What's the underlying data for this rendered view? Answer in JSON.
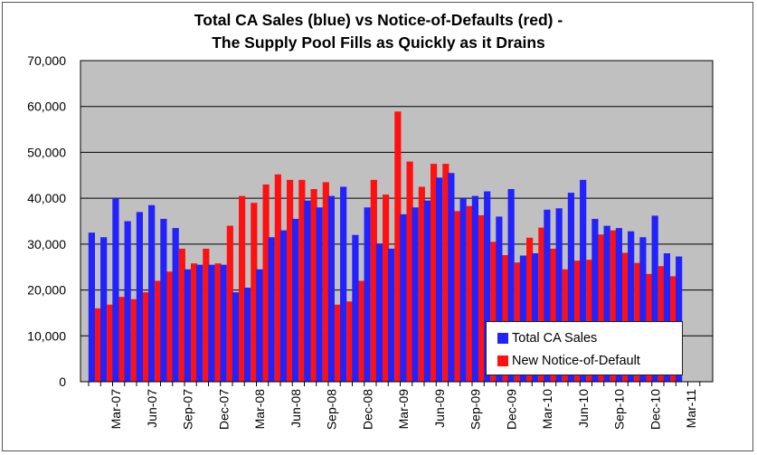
{
  "title_line1": "Total CA Sales (blue) vs Notice-of-Defaults (red) -",
  "title_line2": "The Supply Pool Fills as Quickly as it Drains",
  "colors": {
    "sales": "#2222ff",
    "nod": "#ff1111",
    "plot_bg": "#c0c0c0",
    "grid": "#000000"
  },
  "chart_data": {
    "type": "bar",
    "title": "Total CA Sales (blue) vs Notice-of-Defaults (red) - The Supply Pool Fills as Quickly as it Drains",
    "xlabel": "",
    "ylabel": "",
    "ylim": [
      0,
      70000
    ],
    "yticks": [
      "0",
      "10,000",
      "20,000",
      "30,000",
      "40,000",
      "50,000",
      "60,000",
      "70,000"
    ],
    "grid": true,
    "legend_position": "bottom-right",
    "xtick_labels": [
      "Mar-07",
      "Jun-07",
      "Sep-07",
      "Dec-07",
      "Mar-08",
      "Jun-08",
      "Sep-08",
      "Dec-08",
      "Mar-09",
      "Jun-09",
      "Sep-09",
      "Dec-09",
      "Mar-10",
      "Jun-10",
      "Sep-10",
      "Dec-10",
      "Mar-11"
    ],
    "categories": [
      "Jan-07",
      "Feb-07",
      "Mar-07",
      "Apr-07",
      "May-07",
      "Jun-07",
      "Jul-07",
      "Aug-07",
      "Sep-07",
      "Oct-07",
      "Nov-07",
      "Dec-07",
      "Jan-08",
      "Feb-08",
      "Mar-08",
      "Apr-08",
      "May-08",
      "Jun-08",
      "Jul-08",
      "Aug-08",
      "Sep-08",
      "Oct-08",
      "Nov-08",
      "Dec-08",
      "Jan-09",
      "Feb-09",
      "Mar-09",
      "Apr-09",
      "May-09",
      "Jun-09",
      "Jul-09",
      "Aug-09",
      "Sep-09",
      "Oct-09",
      "Nov-09",
      "Dec-09",
      "Jan-10",
      "Feb-10",
      "Mar-10",
      "Apr-10",
      "May-10",
      "Jun-10",
      "Jul-10",
      "Aug-10",
      "Sep-10",
      "Oct-10",
      "Nov-10",
      "Dec-10",
      "Jan-11",
      "Feb-11"
    ],
    "series": [
      {
        "name": "Total CA Sales",
        "color": "#2222ff",
        "values": [
          32500,
          31500,
          40000,
          35000,
          37000,
          38500,
          35500,
          33500,
          24500,
          25500,
          25500,
          25500,
          19500,
          20500,
          24500,
          31500,
          33000,
          35500,
          39500,
          38000,
          40500,
          42500,
          32000,
          38000,
          30000,
          29000,
          36500,
          38000,
          39500,
          44500,
          45500,
          40000,
          40500,
          41500,
          36000,
          42000,
          27500,
          28000,
          37500,
          37800,
          41200,
          44000,
          35500,
          34000,
          33500,
          32800,
          31500,
          36200,
          28000,
          27300
        ]
      },
      {
        "name": "New Notice-of-Default",
        "color": "#ff1111",
        "values": [
          16000,
          16800,
          18500,
          18000,
          19500,
          22000,
          24000,
          29000,
          25800,
          29000,
          25800,
          34000,
          40500,
          39000,
          43000,
          45200,
          44000,
          44000,
          42000,
          43500,
          16800,
          17500,
          22000,
          44000,
          40800,
          58900,
          48000,
          42500,
          47500,
          47500,
          37200,
          38300,
          36300,
          30500,
          27600,
          26000,
          31400,
          33600,
          29000,
          24500,
          26400,
          26600,
          32100,
          33000,
          28100,
          25900,
          23500,
          25200,
          23000,
          0
        ]
      }
    ]
  },
  "legend": [
    {
      "label": "Total CA Sales",
      "color": "#2222ff"
    },
    {
      "label": "New Notice-of-Default",
      "color": "#ff1111"
    }
  ]
}
